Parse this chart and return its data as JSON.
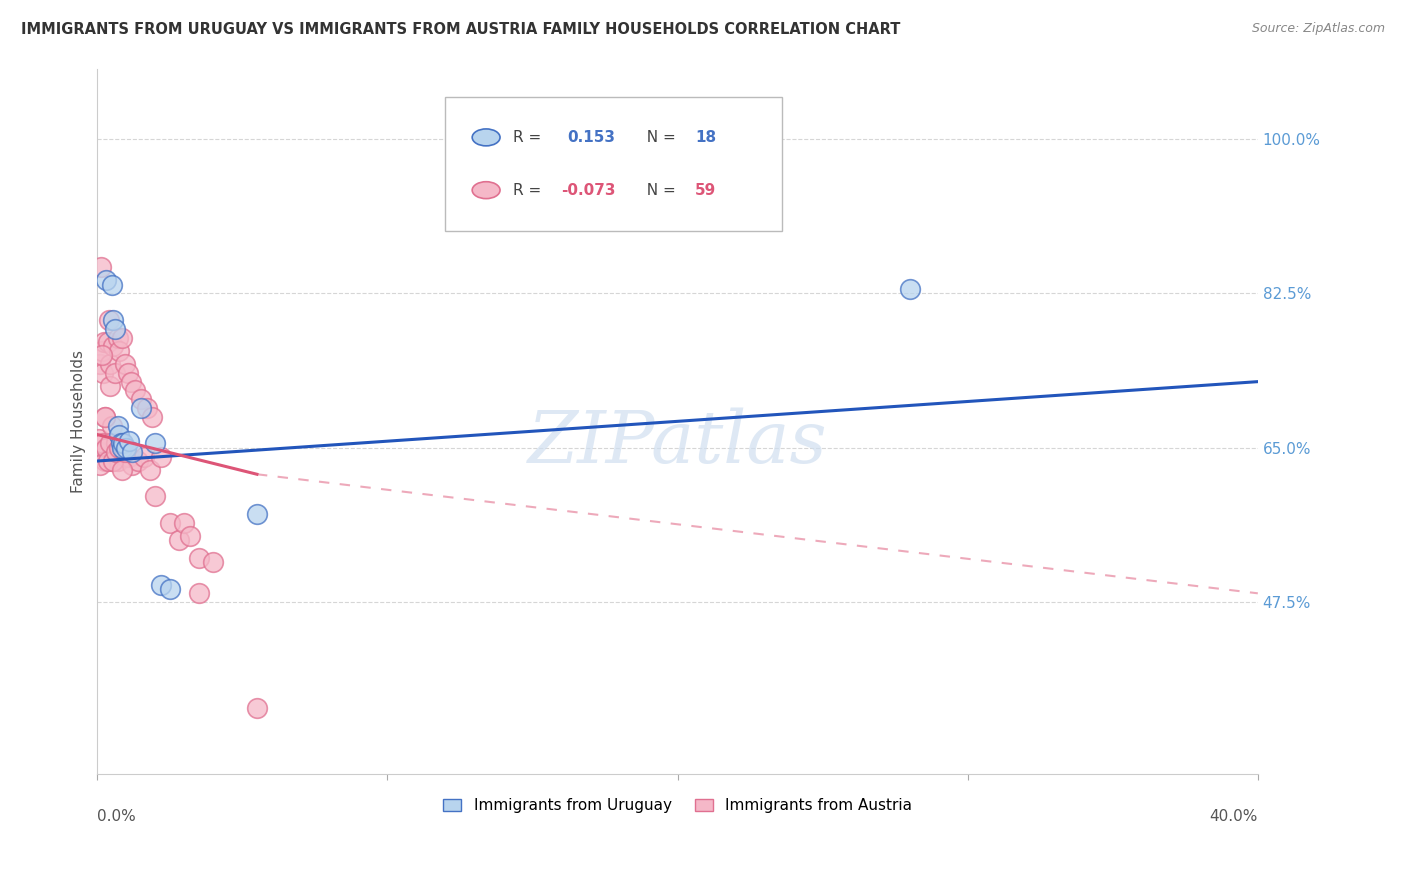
{
  "title": "IMMIGRANTS FROM URUGUAY VS IMMIGRANTS FROM AUSTRIA FAMILY HOUSEHOLDS CORRELATION CHART",
  "source": "Source: ZipAtlas.com",
  "ylabel": "Family Households",
  "yticks": [
    47.5,
    65.0,
    82.5,
    100.0
  ],
  "ytick_labels": [
    "47.5%",
    "65.0%",
    "82.5%",
    "100.0%"
  ],
  "xmin": 0.0,
  "xmax": 40.0,
  "ymin": 28.0,
  "ymax": 108.0,
  "legend_r_uruguay": "0.153",
  "legend_n_uruguay": "18",
  "legend_r_austria": "-0.073",
  "legend_n_austria": "59",
  "color_uruguay_fill": "#b8d4ee",
  "color_austria_fill": "#f5b8c8",
  "color_uruguay_edge": "#4472c4",
  "color_austria_edge": "#e07090",
  "color_uruguay_line": "#2255bb",
  "color_austria_line": "#dd5577",
  "watermark_text": "ZIPatlas",
  "uruguay_x": [
    0.3,
    0.5,
    0.55,
    0.6,
    0.7,
    0.75,
    0.8,
    0.85,
    0.9,
    1.0,
    1.1,
    1.2,
    1.5,
    2.0,
    2.2,
    2.5,
    5.5,
    28.0
  ],
  "uruguay_y": [
    84.0,
    83.5,
    79.5,
    78.5,
    67.5,
    66.5,
    65.5,
    65.0,
    65.5,
    65.0,
    65.8,
    64.5,
    69.5,
    65.5,
    49.5,
    49.0,
    57.5,
    83.0
  ],
  "austria_x": [
    0.05,
    0.08,
    0.1,
    0.12,
    0.15,
    0.18,
    0.2,
    0.22,
    0.25,
    0.28,
    0.3,
    0.35,
    0.4,
    0.42,
    0.45,
    0.5,
    0.52,
    0.55,
    0.6,
    0.65,
    0.7,
    0.72,
    0.75,
    0.8,
    0.85,
    0.9,
    0.95,
    1.0,
    1.05,
    1.1,
    1.15,
    1.2,
    1.3,
    1.4,
    1.5,
    1.6,
    1.7,
    1.8,
    1.9,
    2.0,
    2.2,
    2.5,
    2.8,
    3.0,
    3.2,
    3.5,
    4.0,
    0.08,
    0.15,
    0.25,
    0.35,
    0.45,
    0.55,
    0.65,
    0.75,
    0.85,
    0.95,
    3.5,
    5.5
  ],
  "austria_y": [
    66.0,
    64.5,
    74.5,
    85.5,
    76.0,
    65.5,
    73.5,
    77.0,
    68.5,
    63.5,
    65.0,
    77.0,
    79.5,
    74.5,
    72.0,
    67.5,
    63.5,
    76.5,
    73.5,
    65.5,
    77.5,
    63.5,
    76.0,
    65.5,
    77.5,
    65.0,
    74.5,
    64.0,
    73.5,
    64.0,
    72.5,
    63.0,
    71.5,
    63.5,
    70.5,
    64.0,
    69.5,
    62.5,
    68.5,
    59.5,
    64.0,
    56.5,
    54.5,
    56.5,
    55.0,
    52.5,
    52.0,
    63.0,
    75.5,
    68.5,
    63.5,
    65.5,
    63.5,
    64.5,
    65.0,
    62.5,
    64.5,
    48.5,
    35.5
  ],
  "uru_line_x0": 0.0,
  "uru_line_x1": 40.0,
  "uru_line_y0": 63.5,
  "uru_line_y1": 72.5,
  "aut_line_solid_x0": 0.0,
  "aut_line_solid_x1": 5.5,
  "aut_line_solid_y0": 66.5,
  "aut_line_solid_y1": 62.0,
  "aut_line_dashed_x0": 5.5,
  "aut_line_dashed_x1": 40.0,
  "aut_line_dashed_y0": 62.0,
  "aut_line_dashed_y1": 48.5
}
